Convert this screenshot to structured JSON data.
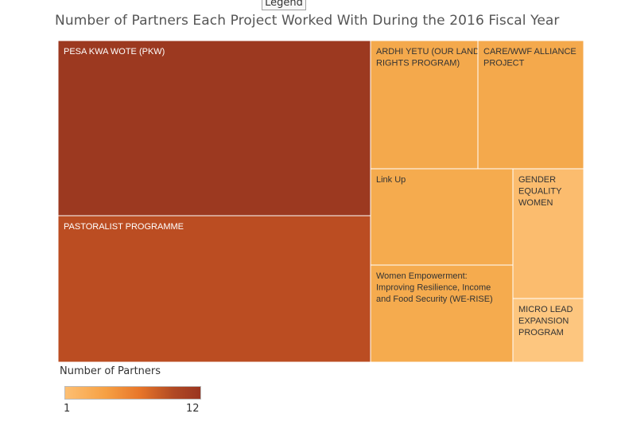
{
  "legend_tab": "Legend",
  "chart_data": {
    "type": "treemap",
    "title": "Number of Partners Each Project Worked With During the 2016 Fiscal Year",
    "measure": "Number of Partners",
    "color_range": [
      1,
      12
    ],
    "colors": {
      "low": "#fdbf72",
      "high": "#9a3520"
    },
    "items": [
      {
        "label": "PESA KWA WOTE (PKW)",
        "lines": [
          "PESA KWA WOTE (PKW)"
        ],
        "value": 12,
        "color": "#9c3920",
        "text_color": "#ffffff"
      },
      {
        "label": "PASTORALIST PROGRAMME",
        "lines": [
          "PASTORALIST PROGRAMME"
        ],
        "value": 11,
        "color": "#bb4d22",
        "text_color": "#ffffff"
      },
      {
        "label": "ARDHI YETU (OUR LAND RIGHTS PROGRAM)",
        "lines": [
          "ARDHI YETU (OUR LAND",
          "RIGHTS PROGRAM)"
        ],
        "value": 2,
        "color": "#f4a94c",
        "text_color": "#333333"
      },
      {
        "label": "CARE/WWF ALLIANCE PROJECT",
        "lines": [
          "CARE/WWF ALLIANCE",
          "PROJECT"
        ],
        "value": 2,
        "color": "#f4a94c",
        "text_color": "#333333"
      },
      {
        "label": "Link Up",
        "lines": [
          "Link Up"
        ],
        "value": 2,
        "color": "#f5ab4e",
        "text_color": "#333333"
      },
      {
        "label": "Women Empowerment: Improving Resilience, Income and Food Security (WE-RISE)",
        "lines": [
          "Women Empowerment:",
          "Improving Resilience, Income",
          "and Food Security (WE-RISE)"
        ],
        "value": 2,
        "color": "#f5ab4e",
        "text_color": "#333333"
      },
      {
        "label": "GENDER EQUALITY WOMEN",
        "lines": [
          "GENDER",
          "EQUALITY",
          "WOMEN"
        ],
        "value": 1,
        "color": "#fbbc6e",
        "text_color": "#333333"
      },
      {
        "label": "MICRO LEAD EXPANSION PROGRAM",
        "lines": [
          "MICRO LEAD",
          "EXPANSION",
          "PROGRAM"
        ],
        "value": 1,
        "color": "#fdc67f",
        "text_color": "#333333"
      }
    ],
    "legend_title": "Number of Partners",
    "legend_min": "1",
    "legend_max": "12"
  }
}
